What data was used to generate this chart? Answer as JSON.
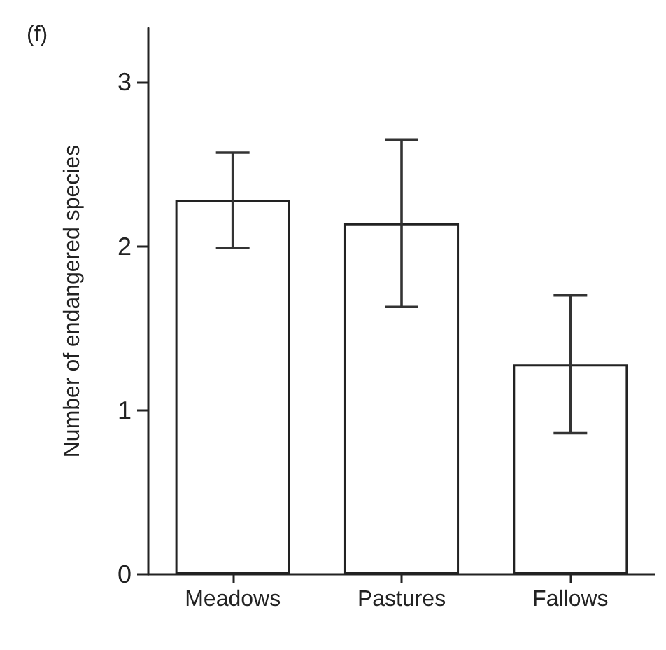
{
  "chart_data": {
    "type": "bar",
    "title": "(f)",
    "ylabel": "Number of endangered species",
    "categories": [
      "Meadows",
      "Pastures",
      "Fallows"
    ],
    "values": [
      2.28,
      2.14,
      1.28
    ],
    "errors": [
      0.29,
      0.51,
      0.42
    ],
    "color": "#ffffff",
    "ylim": [
      0,
      3.33
    ],
    "yticks": [
      0,
      1,
      2,
      3
    ],
    "grid": false
  }
}
